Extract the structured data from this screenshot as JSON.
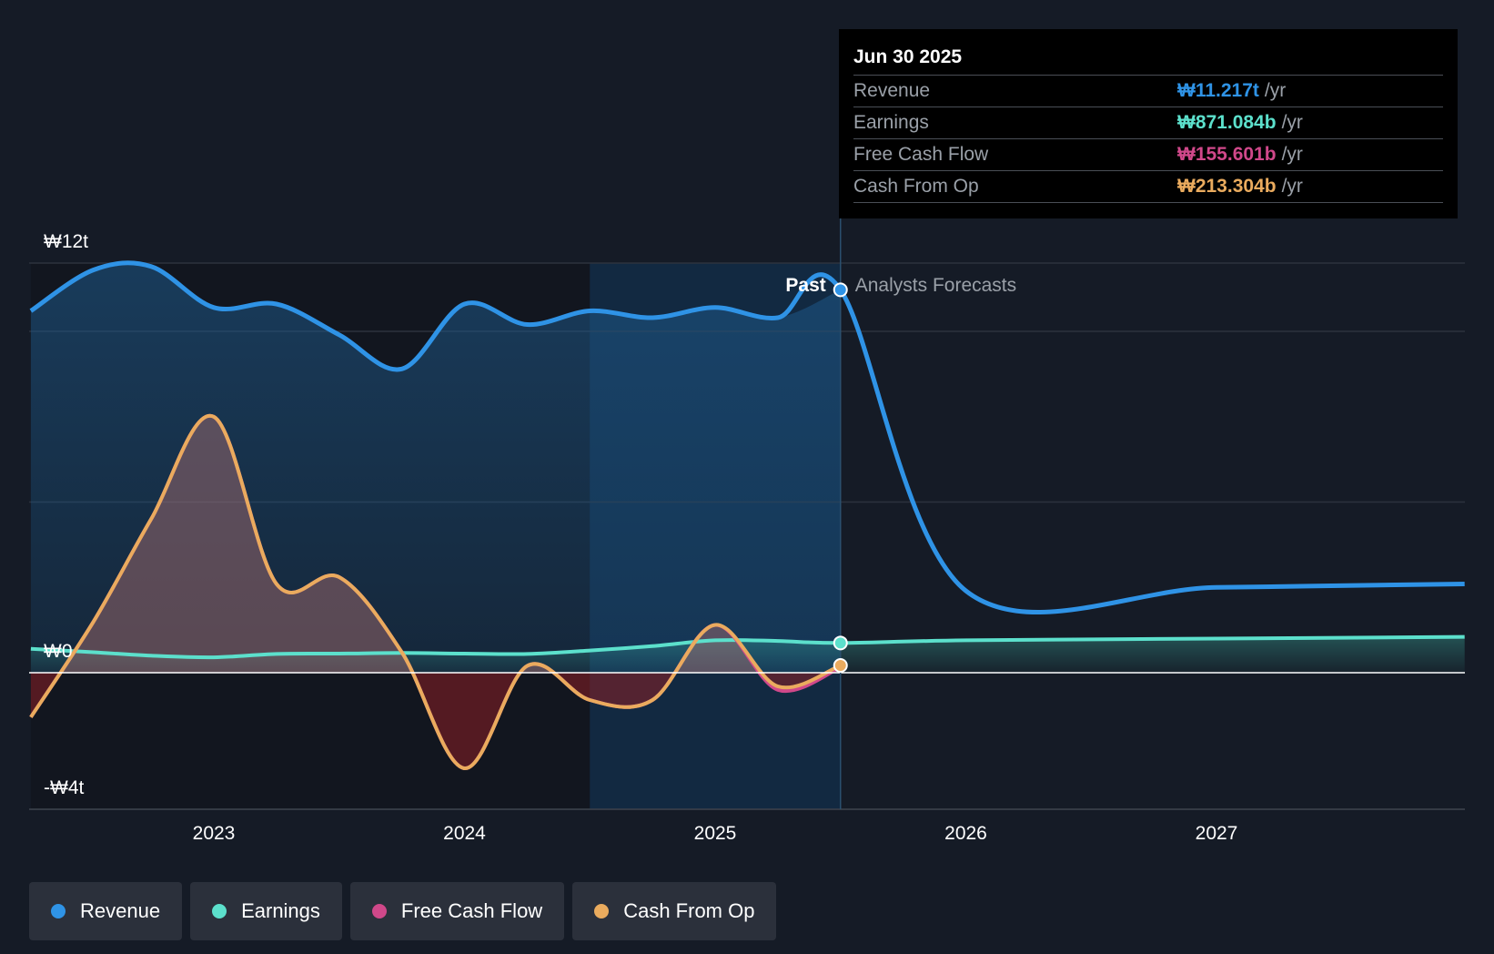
{
  "chart_data": {
    "type": "area",
    "title": "",
    "xlabel": "",
    "ylabel": "",
    "ylim": [
      -4,
      12
    ],
    "x_ticks": [
      "2023",
      "2024",
      "2025",
      "2026",
      "2027"
    ],
    "y_tick_labels": {
      "top": "₩12t",
      "zero": "₩0",
      "bottom": "-₩4t"
    },
    "past_label": "Past",
    "forecast_label": "Analysts Forecasts",
    "divider_date": 2025.5,
    "series": [
      {
        "name": "Revenue",
        "color": "#2f93e6",
        "x": [
          2022.27,
          2022.52,
          2022.75,
          2023.0,
          2023.25,
          2023.5,
          2023.75,
          2024.0,
          2024.25,
          2024.5,
          2024.75,
          2025.0,
          2025.25,
          2025.5,
          2026.0,
          2027.0,
          2027.99
        ],
        "values": [
          10.6,
          11.8,
          11.9,
          10.7,
          10.8,
          9.9,
          8.9,
          10.8,
          10.2,
          10.6,
          10.4,
          10.7,
          10.4,
          11.217,
          2.4,
          2.5,
          2.6
        ]
      },
      {
        "name": "Earnings",
        "color": "#5ce0cc",
        "x": [
          2022.27,
          2022.52,
          2022.75,
          2023.0,
          2023.25,
          2023.5,
          2023.75,
          2024.0,
          2024.25,
          2024.5,
          2024.75,
          2025.0,
          2025.25,
          2025.5,
          2026.0,
          2027.0,
          2027.99
        ],
        "values": [
          0.7,
          0.6,
          0.5,
          0.45,
          0.55,
          0.56,
          0.58,
          0.56,
          0.55,
          0.65,
          0.78,
          0.95,
          0.93,
          0.871,
          0.95,
          1.0,
          1.05
        ]
      },
      {
        "name": "Free Cash Flow",
        "color": "#d0488a",
        "x": [
          2022.27,
          2022.52,
          2022.75,
          2023.0,
          2023.25,
          2023.5,
          2023.75,
          2024.0,
          2024.25,
          2024.5,
          2024.75,
          2025.0,
          2025.25,
          2025.5
        ],
        "values": [
          -1.3,
          1.5,
          4.5,
          7.5,
          2.6,
          2.8,
          0.6,
          -2.8,
          0.2,
          -0.8,
          -0.8,
          1.4,
          -0.5,
          0.156
        ]
      },
      {
        "name": "Cash From Op",
        "color": "#eaab5e",
        "x": [
          2022.27,
          2022.52,
          2022.75,
          2023.0,
          2023.25,
          2023.5,
          2023.75,
          2024.0,
          2024.25,
          2024.5,
          2024.75,
          2025.0,
          2025.25,
          2025.5
        ],
        "values": [
          -1.3,
          1.5,
          4.5,
          7.5,
          2.6,
          2.8,
          0.6,
          -2.8,
          0.2,
          -0.8,
          -0.8,
          1.4,
          -0.4,
          0.213
        ]
      }
    ]
  },
  "tooltip": {
    "date": "Jun 30 2025",
    "rows": [
      {
        "label": "Revenue",
        "value": "₩11.217t",
        "unit": "/yr",
        "color": "#2f93e6"
      },
      {
        "label": "Earnings",
        "value": "₩871.084b",
        "unit": "/yr",
        "color": "#5ce0cc"
      },
      {
        "label": "Free Cash Flow",
        "value": "₩155.601b",
        "unit": "/yr",
        "color": "#d0488a"
      },
      {
        "label": "Cash From Op",
        "value": "₩213.304b",
        "unit": "/yr",
        "color": "#eaab5e"
      }
    ]
  },
  "legend": [
    {
      "label": "Revenue",
      "color": "#2f93e6"
    },
    {
      "label": "Earnings",
      "color": "#5ce0cc"
    },
    {
      "label": "Free Cash Flow",
      "color": "#d0488a"
    },
    {
      "label": "Cash From Op",
      "color": "#eaab5e"
    }
  ]
}
